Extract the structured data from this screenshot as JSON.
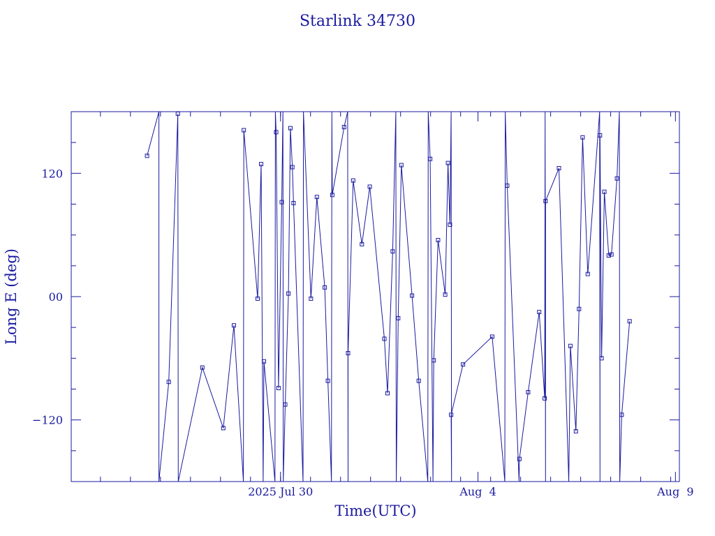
{
  "chart_data": {
    "type": "line",
    "title": "Starlink 34730",
    "xlabel": "Time(UTC)",
    "ylabel": "Long E (deg)",
    "x_unit": "days (July 2025, continuing into August as 32+)",
    "xlim": [
      24.7,
      40.1
    ],
    "ylim": [
      -180,
      180
    ],
    "x_tick_labels": [
      {
        "x": 30,
        "label": "2025 Jul 30"
      },
      {
        "x": 35,
        "label": "Aug  4"
      },
      {
        "x": 40,
        "label": "Aug  9"
      }
    ],
    "y_tick_labels": [
      {
        "y": 120,
        "label": "120"
      },
      {
        "y": 0,
        "label": "00"
      },
      {
        "y": -120,
        "label": "−120"
      }
    ],
    "y_tick_minor_step": 30,
    "x_tick_minor_step": 0.76,
    "line_color": "#1a1aa0",
    "series": [
      {
        "points": [
          [
            26.62,
            137
          ],
          [
            26.92,
            180
          ],
          [
            26.92,
            -180
          ],
          [
            27.17,
            -83
          ],
          [
            27.4,
            178
          ],
          [
            27.41,
            -180
          ],
          [
            28.02,
            -69
          ],
          [
            28.55,
            -128
          ],
          [
            28.82,
            -28
          ],
          [
            29.06,
            -180
          ],
          [
            29.07,
            162
          ],
          [
            29.42,
            -2
          ],
          [
            29.51,
            129
          ],
          [
            29.56,
            -180
          ],
          [
            29.58,
            -63
          ],
          [
            29.86,
            -180
          ],
          [
            29.87,
            180
          ],
          [
            29.89,
            160
          ],
          [
            29.95,
            -89
          ],
          [
            30.03,
            92
          ],
          [
            30.06,
            180
          ],
          [
            30.07,
            -180
          ],
          [
            30.12,
            -105
          ],
          [
            30.2,
            3
          ],
          [
            30.25,
            164
          ],
          [
            30.3,
            126
          ],
          [
            30.33,
            91
          ],
          [
            30.57,
            -180
          ],
          [
            30.58,
            180
          ],
          [
            30.77,
            -2
          ],
          [
            30.92,
            97
          ],
          [
            31.12,
            9
          ],
          [
            31.2,
            -82
          ],
          [
            31.29,
            -180
          ],
          [
            31.3,
            180
          ],
          [
            31.31,
            99
          ],
          [
            31.61,
            165
          ],
          [
            31.7,
            180
          ],
          [
            31.71,
            -180
          ],
          [
            31.71,
            -55
          ],
          [
            31.84,
            113
          ],
          [
            32.06,
            51
          ],
          [
            32.26,
            107
          ],
          [
            32.63,
            -41
          ],
          [
            32.71,
            -94
          ],
          [
            32.84,
            44
          ],
          [
            32.92,
            180
          ],
          [
            32.93,
            -180
          ],
          [
            32.98,
            -21
          ],
          [
            33.06,
            128
          ],
          [
            33.33,
            1
          ],
          [
            33.5,
            -82
          ],
          [
            33.73,
            -180
          ],
          [
            33.74,
            180
          ],
          [
            33.79,
            134
          ],
          [
            33.86,
            -180
          ],
          [
            33.88,
            -62
          ],
          [
            33.99,
            55
          ],
          [
            34.17,
            2
          ],
          [
            34.24,
            130
          ],
          [
            34.29,
            70
          ],
          [
            34.32,
            180
          ],
          [
            34.33,
            -180
          ],
          [
            34.32,
            -115
          ],
          [
            34.62,
            -66
          ],
          [
            35.36,
            -39
          ],
          [
            35.68,
            -180
          ],
          [
            35.69,
            180
          ],
          [
            35.74,
            108
          ],
          [
            36.04,
            -180
          ],
          [
            36.05,
            -158
          ],
          [
            36.27,
            -93
          ],
          [
            36.55,
            -15
          ],
          [
            36.69,
            -99
          ],
          [
            36.7,
            180
          ],
          [
            36.71,
            -180
          ],
          [
            36.71,
            93
          ],
          [
            37.05,
            125
          ],
          [
            37.3,
            -180
          ],
          [
            37.34,
            -48
          ],
          [
            37.48,
            -131
          ],
          [
            37.56,
            -12
          ],
          [
            37.65,
            155
          ],
          [
            37.78,
            22
          ],
          [
            38.08,
            180
          ],
          [
            38.09,
            -180
          ],
          [
            38.09,
            157
          ],
          [
            38.13,
            -60
          ],
          [
            38.2,
            102
          ],
          [
            38.31,
            40
          ],
          [
            38.38,
            41
          ],
          [
            38.52,
            115
          ],
          [
            38.58,
            180
          ],
          [
            38.59,
            -180
          ],
          [
            38.64,
            -115
          ],
          [
            38.84,
            -24
          ]
        ]
      }
    ]
  }
}
